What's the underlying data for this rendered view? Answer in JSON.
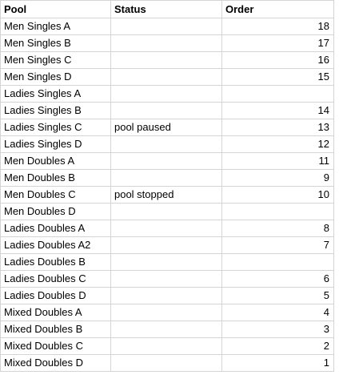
{
  "headers": {
    "pool": "Pool",
    "status": "Status",
    "order": "Order"
  },
  "rows": [
    {
      "pool": "Men Singles A",
      "status": "",
      "order": "18"
    },
    {
      "pool": "Men Singles B",
      "status": "",
      "order": "17"
    },
    {
      "pool": "Men Singles C",
      "status": "",
      "order": "16"
    },
    {
      "pool": "Men Singles D",
      "status": "",
      "order": "15"
    },
    {
      "pool": "Ladies Singles A",
      "status": "",
      "order": ""
    },
    {
      "pool": "Ladies Singles B",
      "status": "",
      "order": "14"
    },
    {
      "pool": "Ladies Singles C",
      "status": "pool paused",
      "order": "13"
    },
    {
      "pool": "Ladies Singles D",
      "status": "",
      "order": "12"
    },
    {
      "pool": "Men Doubles A",
      "status": "",
      "order": "11"
    },
    {
      "pool": "Men Doubles B",
      "status": "",
      "order": "9"
    },
    {
      "pool": "Men Doubles C",
      "status": "pool stopped",
      "order": "10"
    },
    {
      "pool": "Men Doubles D",
      "status": "",
      "order": ""
    },
    {
      "pool": "Ladies Doubles A",
      "status": "",
      "order": "8"
    },
    {
      "pool": "Ladies Doubles A2",
      "status": "",
      "order": "7"
    },
    {
      "pool": "Ladies Doubles B",
      "status": "",
      "order": ""
    },
    {
      "pool": "Ladies Doubles C",
      "status": "",
      "order": "6"
    },
    {
      "pool": "Ladies Doubles D",
      "status": "",
      "order": "5"
    },
    {
      "pool": "Mixed Doubles A",
      "status": "",
      "order": "4"
    },
    {
      "pool": "Mixed Doubles B",
      "status": "",
      "order": "3"
    },
    {
      "pool": "Mixed Doubles C",
      "status": "",
      "order": "2"
    },
    {
      "pool": "Mixed Doubles D",
      "status": "",
      "order": "1"
    }
  ]
}
